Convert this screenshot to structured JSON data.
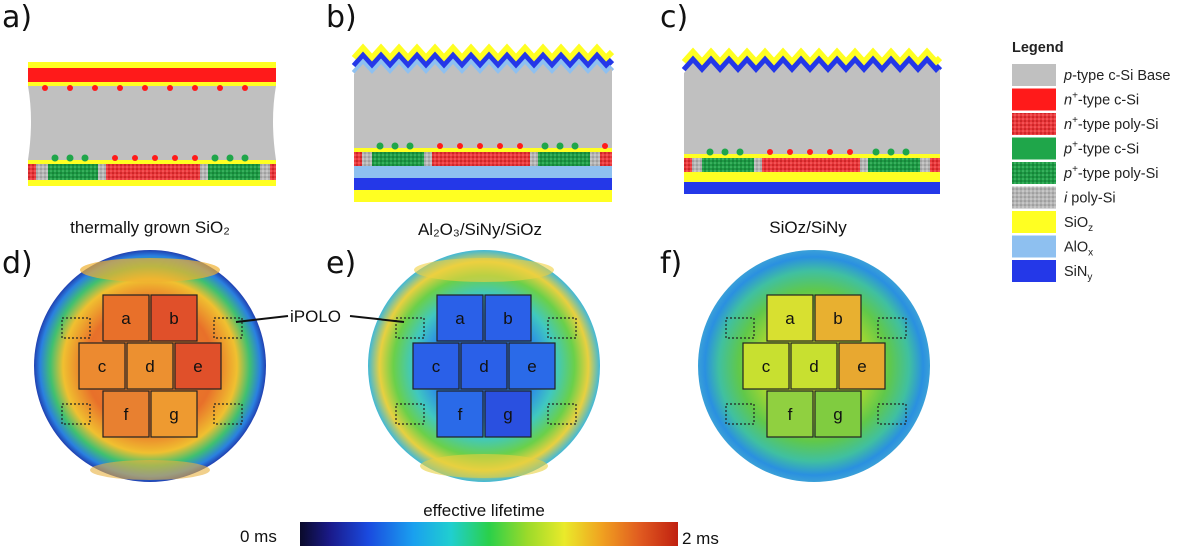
{
  "panels": {
    "a": "a)",
    "b": "b)",
    "c": "c)",
    "d": "d)",
    "e": "e)",
    "f": "f)"
  },
  "captions": {
    "a": "thermally grown SiO₂",
    "b": "Al₂O₃/SiNy/SiOz",
    "c": "SiOz/SiNy"
  },
  "legend": {
    "title": "Legend",
    "items": [
      {
        "prefix": "p",
        "prefix_style": "italic",
        "sup": "",
        "text": "-type c-Si Base",
        "color": "#c0c0c0",
        "pattern": "none"
      },
      {
        "prefix": "n",
        "prefix_style": "italic",
        "sup": "+",
        "text": "-type c-Si",
        "color": "#ff1a1a",
        "pattern": "none"
      },
      {
        "prefix": "n",
        "prefix_style": "italic",
        "sup": "+",
        "text": "-type poly-Si",
        "color": "#e8383c",
        "pattern": "dots"
      },
      {
        "prefix": "p",
        "prefix_style": "italic",
        "sup": "+",
        "text": "-type c-Si",
        "color": "#1fa64a",
        "pattern": "none"
      },
      {
        "prefix": "p",
        "prefix_style": "italic",
        "sup": "+",
        "text": "-type poly-Si",
        "color": "#1e9a45",
        "pattern": "dots"
      },
      {
        "prefix": "i",
        "prefix_style": "italic",
        "sup": "",
        "text": " poly-Si",
        "color": "#b4b4b4",
        "pattern": "dots"
      },
      {
        "prefix": "SiO",
        "prefix_style": "normal",
        "sub": "z",
        "text": "",
        "color": "#ffff22",
        "pattern": "none"
      },
      {
        "prefix": "AlO",
        "prefix_style": "normal",
        "sub": "x",
        "text": "",
        "color": "#8ec0f0",
        "pattern": "none"
      },
      {
        "prefix": "SiN",
        "prefix_style": "normal",
        "sub": "y",
        "text": "",
        "color": "#2438e8",
        "pattern": "none"
      }
    ]
  },
  "maps": {
    "cells": [
      "a",
      "b",
      "c",
      "d",
      "e",
      "f",
      "g"
    ],
    "ipolo_label": "iPOLO"
  },
  "colorbar": {
    "title": "effective lifetime",
    "min_label": "0 ms",
    "max_label": "2 ms"
  },
  "colors": {
    "base": "#c0c0c0",
    "n_type": "#ff1a1a",
    "p_type": "#1fa64a",
    "sio2": "#ffff22",
    "alox": "#8ec0f0",
    "sinx": "#2438e8",
    "ipoly": "#b4b4b4"
  }
}
